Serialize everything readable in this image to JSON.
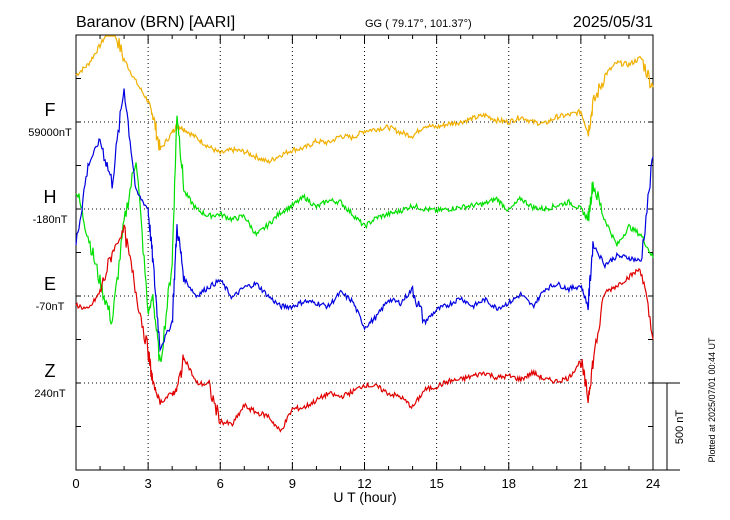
{
  "header": {
    "station": "Baranov (BRN)  [AARI]",
    "coords": "GG ( 79.17°, 101.37°)",
    "date": "2025/05/31"
  },
  "footer": {
    "plotted": "Plotted at 2025/07/01 00:44 UT",
    "scale_label": "500 nT"
  },
  "colors": {
    "F": "#f0b000",
    "H": "#00e000",
    "E": "#0000e0",
    "Z": "#e00000"
  },
  "chart_data": {
    "type": "line",
    "xlabel": "U T (hour)",
    "xlim": [
      0,
      24
    ],
    "xticks": [
      0,
      3,
      6,
      9,
      12,
      15,
      18,
      21,
      24
    ],
    "scale_bar_nT": 500,
    "series": [
      {
        "name": "F",
        "baseline_label": "59000nT",
        "x": [
          0,
          0.5,
          1,
          1.5,
          2,
          2.5,
          3,
          3.2,
          3.5,
          4,
          4.2,
          4.5,
          5,
          5.5,
          6,
          6.5,
          7,
          7.5,
          8,
          8.5,
          9,
          9.5,
          10,
          10.5,
          11,
          11.5,
          12,
          12.5,
          13,
          13.5,
          14,
          14.5,
          15,
          15.5,
          16,
          16.5,
          17,
          17.5,
          18,
          18.5,
          19,
          19.5,
          20,
          20.5,
          21,
          21.3,
          21.5,
          22,
          22.5,
          23,
          23.5,
          24
        ],
        "values": [
          270,
          330,
          440,
          560,
          360,
          230,
          120,
          40,
          -160,
          -60,
          -20,
          -40,
          -90,
          -140,
          -180,
          -160,
          -170,
          -200,
          -230,
          -190,
          -160,
          -150,
          -110,
          -120,
          -80,
          -90,
          -50,
          -40,
          -30,
          -60,
          -80,
          -20,
          -30,
          -10,
          0,
          20,
          40,
          10,
          0,
          30,
          0,
          -10,
          30,
          40,
          60,
          -60,
          100,
          270,
          340,
          330,
          370,
          200
        ]
      },
      {
        "name": "H",
        "baseline_label": "-180nT",
        "x": [
          0,
          0.5,
          1,
          1.5,
          2,
          2.5,
          3,
          3.2,
          3.5,
          4,
          4.2,
          4.5,
          5,
          5.5,
          6,
          6.5,
          7,
          7.5,
          8,
          8.5,
          9,
          9.5,
          10,
          10.5,
          11,
          11.5,
          12,
          12.5,
          13,
          13.5,
          14,
          14.5,
          15,
          15.5,
          16,
          16.5,
          17,
          17.5,
          18,
          18.5,
          19,
          19.5,
          20,
          20.5,
          21,
          21.3,
          21.5,
          22,
          22.5,
          23,
          23.5,
          24
        ],
        "values": [
          120,
          -150,
          -420,
          -650,
          -80,
          300,
          -600,
          -500,
          -900,
          -300,
          560,
          100,
          0,
          -40,
          -30,
          -60,
          -40,
          -150,
          -90,
          -20,
          20,
          70,
          10,
          50,
          40,
          -30,
          -100,
          -50,
          -30,
          -10,
          20,
          0,
          -10,
          0,
          10,
          20,
          30,
          60,
          -10,
          60,
          10,
          0,
          20,
          40,
          0,
          -60,
          150,
          -60,
          -210,
          -100,
          -150,
          -280
        ]
      },
      {
        "name": "E",
        "baseline_label": "-70nT",
        "x": [
          0,
          0.5,
          1,
          1.5,
          2,
          2.5,
          3,
          3.2,
          3.5,
          4,
          4.2,
          4.5,
          5,
          5.5,
          6,
          6.5,
          7,
          7.5,
          8,
          8.5,
          9,
          9.5,
          10,
          10.5,
          11,
          11.5,
          12,
          12.5,
          13,
          13.5,
          14,
          14.5,
          15,
          15.5,
          16,
          16.5,
          17,
          17.5,
          18,
          18.5,
          19,
          19.5,
          20,
          20.5,
          21,
          21.3,
          21.5,
          22,
          22.5,
          23,
          23.5,
          24
        ],
        "values": [
          300,
          750,
          900,
          650,
          1200,
          600,
          500,
          200,
          -300,
          -150,
          400,
          100,
          0,
          50,
          90,
          -10,
          50,
          70,
          0,
          -60,
          -60,
          -30,
          -40,
          -60,
          20,
          -30,
          -180,
          -120,
          -20,
          -40,
          40,
          -150,
          -80,
          -50,
          -10,
          -60,
          -20,
          -70,
          -40,
          10,
          -60,
          40,
          70,
          40,
          60,
          -60,
          300,
          180,
          230,
          220,
          200,
          800
        ]
      },
      {
        "name": "Z",
        "baseline_label": "240nT",
        "x": [
          0,
          0.5,
          1,
          1.5,
          2,
          2.5,
          3,
          3.2,
          3.5,
          4,
          4.2,
          4.5,
          5,
          5.5,
          6,
          6.5,
          7,
          7.5,
          8,
          8.5,
          9,
          9.5,
          10,
          10.5,
          11,
          11.5,
          12,
          12.5,
          13,
          13.5,
          14,
          14.5,
          15,
          15.5,
          16,
          16.5,
          17,
          17.5,
          18,
          18.5,
          19,
          19.5,
          20,
          20.5,
          21,
          21.3,
          21.5,
          22,
          22.5,
          23,
          23.5,
          24
        ],
        "values": [
          450,
          420,
          520,
          750,
          880,
          520,
          180,
          0,
          -110,
          -60,
          -40,
          150,
          0,
          -10,
          -220,
          -240,
          -130,
          -170,
          -190,
          -280,
          -150,
          -140,
          -100,
          -60,
          -80,
          -50,
          -10,
          -20,
          -60,
          -80,
          -140,
          -40,
          -20,
          10,
          20,
          40,
          60,
          30,
          40,
          20,
          60,
          20,
          10,
          30,
          130,
          -90,
          120,
          520,
          560,
          610,
          660,
          250
        ]
      }
    ]
  }
}
